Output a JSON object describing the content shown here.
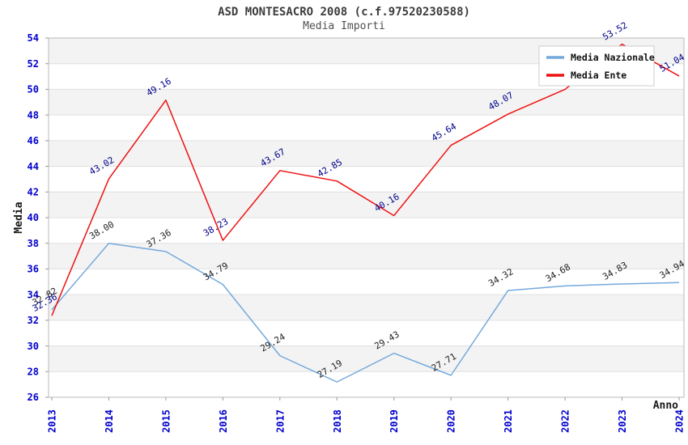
{
  "colors": {
    "background": "#ffffff",
    "band_gray": "#f3f3f3",
    "band_white": "#ffffff",
    "gridline": "#e0e0e0",
    "plot_border": "#b9b9b9",
    "tick_mark": "#999999",
    "axis_tick_label": "#0000cd",
    "title_color": "#3c3c3c",
    "subtitle_color": "#505050",
    "axis_title_color": "#1a1a1a",
    "legend_border": "#cccccc",
    "legend_bg": "#ffffff",
    "legend_text": "#111111",
    "nazionale_line": "#74a9dc",
    "ente_line": "#ee1111",
    "nazionale_label": "#222222",
    "ente_label": "#00008b"
  },
  "chart_data": {
    "type": "line",
    "title": "ASD MONTESACRO 2008 (c.f.97520230588)",
    "subtitle": "Media Importi",
    "xlabel": "Anno",
    "ylabel": "Media",
    "x": [
      2013,
      2014,
      2015,
      2016,
      2017,
      2018,
      2019,
      2020,
      2021,
      2022,
      2023,
      2024
    ],
    "ylim": [
      26,
      54
    ],
    "ytick_step": 2,
    "yticks": [
      26,
      28,
      30,
      32,
      34,
      36,
      38,
      40,
      42,
      44,
      46,
      48,
      50,
      52,
      54
    ],
    "grid": true,
    "band_pattern": "alternating gray/white horizontal bands, gray topmost (52-54)",
    "legend_position": "top-right",
    "series": [
      {
        "name": "Media Nazionale",
        "color": "#74a9dc",
        "label_color": "#222222",
        "values": [
          32.82,
          38.0,
          37.36,
          34.79,
          29.24,
          27.19,
          29.43,
          27.71,
          34.32,
          34.68,
          34.83,
          34.94
        ],
        "labels": [
          "32.82",
          "38.00",
          "37.36",
          "34.79",
          "29.24",
          "27.19",
          "29.43",
          "27.71",
          "34.32",
          "34.68",
          "34.83",
          "34.94"
        ]
      },
      {
        "name": "Media Ente",
        "color": "#ee1111",
        "label_color": "#00008b",
        "values": [
          32.36,
          43.02,
          49.16,
          38.23,
          43.67,
          42.85,
          40.16,
          45.64,
          48.07,
          50.0,
          53.52,
          51.04
        ],
        "labels": [
          "32.36",
          "43.02",
          "49.16",
          "38.23",
          "43.67",
          "42.85",
          "40.16",
          "45.64",
          "48.07",
          "",
          "53.52",
          "51.04"
        ],
        "note_2022": "label hidden behind legend box in source image"
      }
    ]
  }
}
